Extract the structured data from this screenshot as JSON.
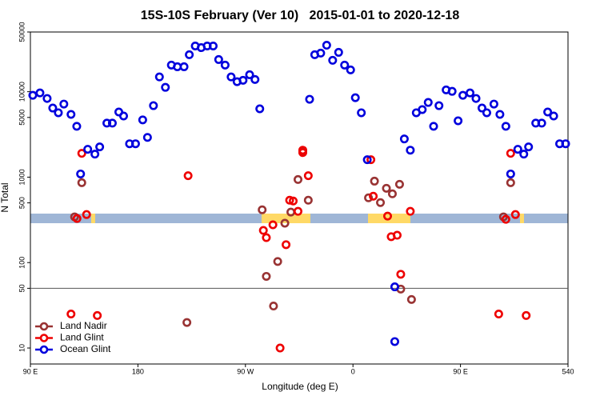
{
  "chart_data": {
    "type": "scatter",
    "title": "15S-10S February (Ver 10)   2015-01-01 to 2020-12-18",
    "x_label": "Longitude (deg E)",
    "y_label": "N Total",
    "log_y": true,
    "legend": "bottom-left",
    "hline": 50,
    "xlim": [
      90,
      540
    ],
    "xticks": [
      {
        "value": 90,
        "label": "90 E"
      },
      180,
      {
        "value": 270,
        "label": "90 W"
      },
      {
        "value": 360,
        "label": "0"
      },
      {
        "value": 450,
        "label": "90 E"
      },
      540
    ],
    "ylim": [
      6.5,
      50000
    ],
    "yticks": [
      10,
      50,
      100,
      500,
      1000,
      5000,
      10000,
      50000
    ],
    "series": [
      {
        "name": "Land Nadir",
        "color": "#993333",
        "x": [
          127,
          133,
          221,
          284,
          287.5,
          293.5,
          297,
          303,
          308,
          314,
          318,
          322.6,
          373,
          378,
          383,
          388,
          393,
          399,
          400,
          409,
          486,
          492
        ],
        "values": [
          343,
          861,
          19.9,
          415,
          69,
          31,
          103,
          289,
          390,
          938,
          2030,
          537,
          573,
          898,
          504,
          741,
          638,
          825,
          49,
          37,
          343,
          861
        ]
      },
      {
        "name": "Land Glint",
        "color": "#ee0000",
        "x": [
          124,
          129,
          133,
          137,
          146,
          222,
          285,
          287.5,
          293,
          299,
          304,
          307,
          310,
          314,
          318,
          318,
          322.6,
          375,
          377,
          389,
          392,
          397,
          400,
          408,
          482,
          488,
          492,
          496,
          505
        ],
        "values": [
          25,
          328,
          1900,
          365,
          24,
          1040,
          238,
          196,
          277,
          10,
          162,
          537,
          526,
          398,
          2070,
          1940,
          1040,
          1600,
          598,
          350,
          201,
          209,
          73,
          398,
          25,
          321,
          1900,
          365,
          24
        ]
      },
      {
        "name": "Ocean Glint",
        "color": "#0000dd",
        "x": [
          92,
          98,
          104,
          108.7,
          113.4,
          118,
          124,
          128.8,
          132,
          138,
          144,
          148,
          154,
          158.6,
          164,
          168,
          173,
          178,
          184,
          188,
          193,
          198,
          203,
          208,
          213,
          218.6,
          223,
          228,
          233,
          238,
          243,
          247.6,
          253,
          258,
          263,
          268,
          273.5,
          278,
          282,
          323.7,
          328,
          333,
          338,
          343,
          348,
          353,
          358,
          362,
          367,
          372,
          395,
          395,
          403,
          408,
          413,
          418,
          423,
          427.5,
          432,
          438,
          443,
          448,
          452,
          458,
          463,
          468,
          472,
          478,
          483,
          488,
          492,
          498,
          503,
          507,
          513,
          518,
          523,
          528,
          533,
          538
        ],
        "values": [
          9080,
          9680,
          8340,
          6440,
          5670,
          7170,
          5430,
          3940,
          1090,
          2120,
          1860,
          2260,
          4290,
          4290,
          5790,
          5200,
          2460,
          2460,
          4680,
          2920,
          6870,
          14900,
          11250,
          20500,
          19600,
          19600,
          27100,
          34300,
          32800,
          34300,
          34300,
          23800,
          20500,
          14900,
          13100,
          13600,
          15800,
          13900,
          6310,
          8160,
          27100,
          28300,
          35000,
          23300,
          28900,
          20500,
          18000,
          8510,
          5670,
          1600,
          52,
          11.9,
          2800,
          2070,
          5670,
          6180,
          7490,
          3940,
          6870,
          10500,
          10100,
          4570,
          9080,
          9680,
          8340,
          6440,
          5670,
          7170,
          5430,
          3940,
          1090,
          2120,
          1860,
          2260,
          4290,
          4290,
          5790,
          5200,
          2460,
          2460
        ]
      }
    ]
  }
}
